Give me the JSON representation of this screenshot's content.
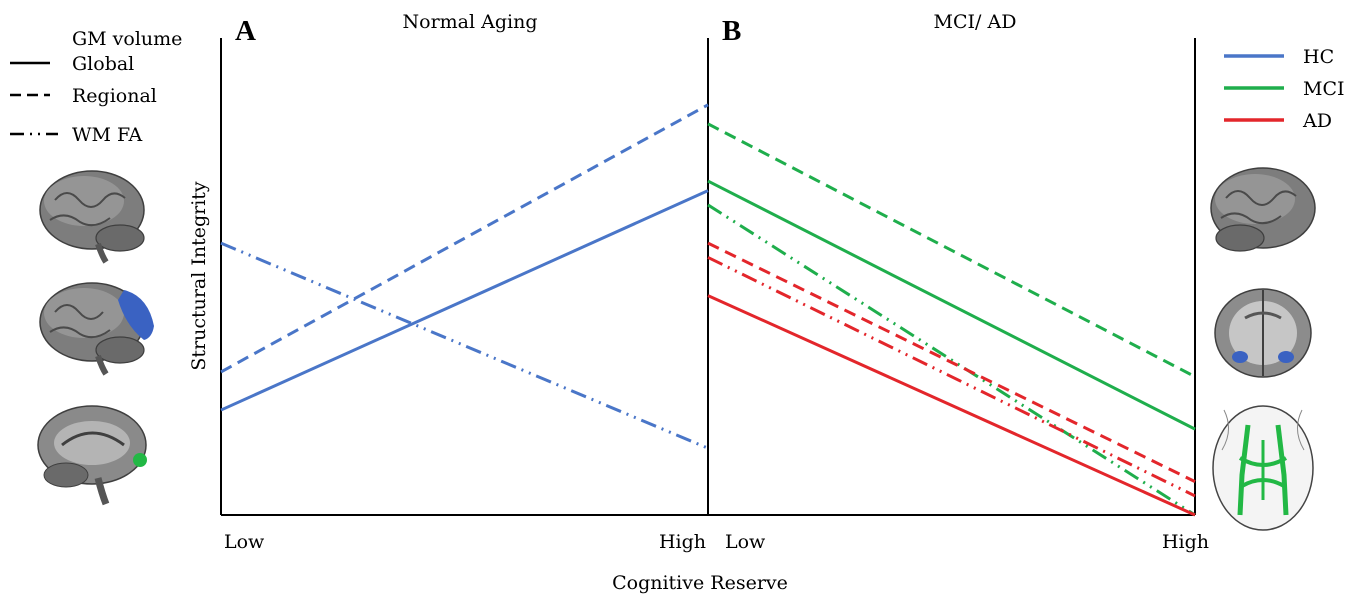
{
  "x_axis_title": "Cognitive Reserve",
  "y_axis_title": "Structural Integrity",
  "legend_left": {
    "header": "GM volume",
    "items": [
      {
        "label": "Global",
        "style": "solid"
      },
      {
        "label": "Regional",
        "style": "dashed"
      },
      {
        "label": "WM FA",
        "style": "dash-dot-dot"
      }
    ]
  },
  "legend_right": {
    "items": [
      {
        "label": "HC",
        "color": "#4a76c8"
      },
      {
        "label": "MCI",
        "color": "#1fae4c"
      },
      {
        "label": "AD",
        "color": "#e3262b"
      }
    ]
  },
  "colors": {
    "hc": "#4a76c8",
    "mci": "#1fae4c",
    "ad": "#e3262b",
    "brain_region_blue": "#3a62c2",
    "brain_region_green": "#22b845"
  },
  "icons": {
    "left": [
      "brain-lateral-icon",
      "brain-lateral-region-icon",
      "brain-sagittal-icon"
    ],
    "right": [
      "brain-lateral-icon",
      "brain-coronal-icon",
      "brain-tracts-icon"
    ]
  },
  "chart_data": [
    {
      "type": "line",
      "panel": "A",
      "title": "Normal Aging",
      "x_ticks": [
        "Low",
        "High"
      ],
      "x": [
        0,
        1
      ],
      "ylim": [
        0,
        1
      ],
      "series": [
        {
          "group": "HC",
          "measure": "Global",
          "style": "solid",
          "values": [
            0.22,
            0.68
          ]
        },
        {
          "group": "HC",
          "measure": "Regional",
          "style": "dashed",
          "values": [
            0.3,
            0.86
          ]
        },
        {
          "group": "HC",
          "measure": "WM FA",
          "style": "dash-dot-dot",
          "values": [
            0.57,
            0.14
          ]
        }
      ]
    },
    {
      "type": "line",
      "panel": "B",
      "title": "MCI/ AD",
      "x_ticks": [
        "Low",
        "High"
      ],
      "x": [
        0,
        1
      ],
      "ylim": [
        0,
        1
      ],
      "series": [
        {
          "group": "MCI",
          "measure": "Regional",
          "style": "dashed",
          "values": [
            0.82,
            0.29
          ]
        },
        {
          "group": "MCI",
          "measure": "Global",
          "style": "solid",
          "values": [
            0.7,
            0.18
          ]
        },
        {
          "group": "MCI",
          "measure": "WM FA",
          "style": "dash-dot-dot",
          "values": [
            0.65,
            0.0
          ]
        },
        {
          "group": "AD",
          "measure": "Regional",
          "style": "dashed",
          "values": [
            0.57,
            0.07
          ]
        },
        {
          "group": "AD",
          "measure": "WM FA",
          "style": "dash-dot-dot",
          "values": [
            0.54,
            0.04
          ]
        },
        {
          "group": "AD",
          "measure": "Global",
          "style": "solid",
          "values": [
            0.46,
            0.0
          ]
        }
      ]
    }
  ]
}
